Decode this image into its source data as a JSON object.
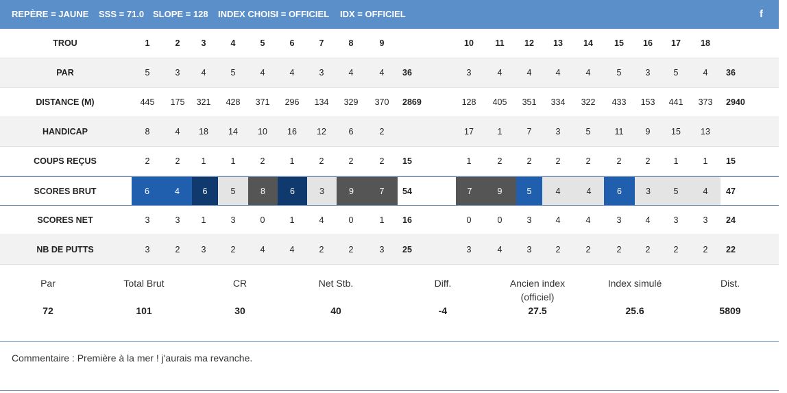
{
  "header": {
    "repere": "REPÈRE = JAUNE",
    "sss": "SSS = 71.0",
    "slope": "SLOPE = 128",
    "index_choisi": "INDEX CHOISI = OFFICIEL",
    "idx": "IDX = OFFICIEL",
    "share_icon": "facebook-icon",
    "facebook_glyph": "f"
  },
  "scorecard": {
    "labels": {
      "trou": "TROU",
      "par": "PAR",
      "distance": "DISTANCE (M)",
      "handicap": "HANDICAP",
      "coups": "COUPS REÇUS",
      "brut": "SCORES BRUT",
      "net": "SCORES NET",
      "putts": "NB DE PUTTS"
    },
    "trou": [
      "1",
      "2",
      "3",
      "4",
      "5",
      "6",
      "7",
      "8",
      "9",
      "10",
      "11",
      "12",
      "13",
      "14",
      "15",
      "16",
      "17",
      "18"
    ],
    "par": [
      "5",
      "3",
      "4",
      "5",
      "4",
      "4",
      "3",
      "4",
      "4",
      "3",
      "4",
      "4",
      "4",
      "4",
      "5",
      "3",
      "5",
      "4"
    ],
    "par_out": "36",
    "par_in": "36",
    "distance": [
      "445",
      "175",
      "321",
      "428",
      "371",
      "296",
      "134",
      "329",
      "370",
      "128",
      "405",
      "351",
      "334",
      "322",
      "433",
      "153",
      "441",
      "373"
    ],
    "distance_out": "2869",
    "distance_in": "2940",
    "handicap": [
      "8",
      "4",
      "18",
      "14",
      "10",
      "16",
      "12",
      "6",
      "2",
      "17",
      "1",
      "7",
      "3",
      "5",
      "11",
      "9",
      "15",
      "13"
    ],
    "coups": [
      "2",
      "2",
      "1",
      "1",
      "2",
      "1",
      "2",
      "2",
      "2",
      "1",
      "2",
      "2",
      "2",
      "2",
      "2",
      "2",
      "1",
      "1"
    ],
    "coups_out": "15",
    "coups_in": "15",
    "brut": [
      "6",
      "4",
      "6",
      "5",
      "8",
      "6",
      "3",
      "9",
      "7",
      "7",
      "9",
      "5",
      "4",
      "4",
      "6",
      "3",
      "5",
      "4"
    ],
    "brut_out": "54",
    "brut_in": "47",
    "brut_colors": [
      "#1f5fae",
      "#1f5fae",
      "#103a6e",
      "#e4e4e4",
      "#555555",
      "#103a6e",
      "#e4e4e4",
      "#555555",
      "#555555",
      "#555555",
      "#555555",
      "#1f5fae",
      "#e4e4e4",
      "#e4e4e4",
      "#1f5fae",
      "#e4e4e4",
      "#e4e4e4",
      "#e4e4e4"
    ],
    "net": [
      "3",
      "3",
      "1",
      "3",
      "0",
      "1",
      "4",
      "0",
      "1",
      "0",
      "0",
      "3",
      "4",
      "4",
      "3",
      "4",
      "3",
      "3"
    ],
    "net_out": "16",
    "net_in": "24",
    "putts": [
      "3",
      "2",
      "3",
      "2",
      "4",
      "4",
      "2",
      "2",
      "3",
      "3",
      "4",
      "3",
      "2",
      "2",
      "2",
      "2",
      "2",
      "2"
    ],
    "putts_out": "25",
    "putts_in": "22"
  },
  "summary": {
    "par_label": "Par",
    "par_value": "72",
    "brut_label": "Total Brut",
    "brut_value": "101",
    "cr_label": "CR",
    "cr_value": "30",
    "netstb_label": "Net Stb.",
    "netstb_value": "40",
    "diff_label": "Diff.",
    "diff_value": "-4",
    "ancien_label_1": "Ancien index",
    "ancien_label_2": "(officiel)",
    "ancien_value": "27.5",
    "simule_label": "Index simulé",
    "simule_value": "25.6",
    "dist_label": "Dist.",
    "dist_value": "5809"
  },
  "comment": "Commentaire : Première à la mer ! j'aurais ma revanche."
}
